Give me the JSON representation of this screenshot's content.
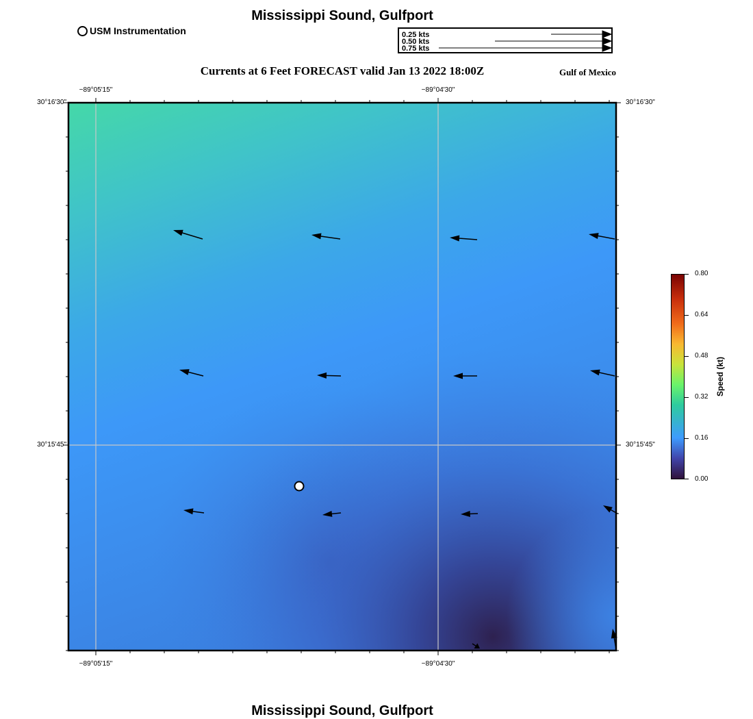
{
  "header": {
    "title": "Mississippi Sound, Gulfport",
    "subtitle": "Currents at 6 Feet FORECAST valid Jan 13 2022 18:00Z",
    "region": "Gulf of Mexico",
    "legend_marker_label": "USM Instrumentation"
  },
  "scale_legend": {
    "labels": [
      "0.25 kts",
      "0.50 kts",
      "0.75 kts"
    ]
  },
  "map": {
    "lon_labels": [
      "−89°05'15\"",
      "−89°04'30\""
    ],
    "lat_labels": [
      "30°16'30\"",
      "30°15'45\""
    ],
    "station_marker": "USM Instrumentation"
  },
  "colorbar": {
    "title": "Speed (kt)",
    "ticks": [
      "0.80",
      "0.64",
      "0.48",
      "0.32",
      "0.16",
      "0.00"
    ],
    "colormap": "turbo",
    "range": [
      0.0,
      0.8
    ]
  },
  "footer": {
    "title": "Mississippi Sound, Gulfport"
  },
  "colors": {
    "frame": "#000000",
    "grid": "#c8c8c8",
    "arrow": "#000000",
    "field_high": "#45d8a8",
    "field_mid": "#3d98f8",
    "field_low": "#2e2150"
  }
}
